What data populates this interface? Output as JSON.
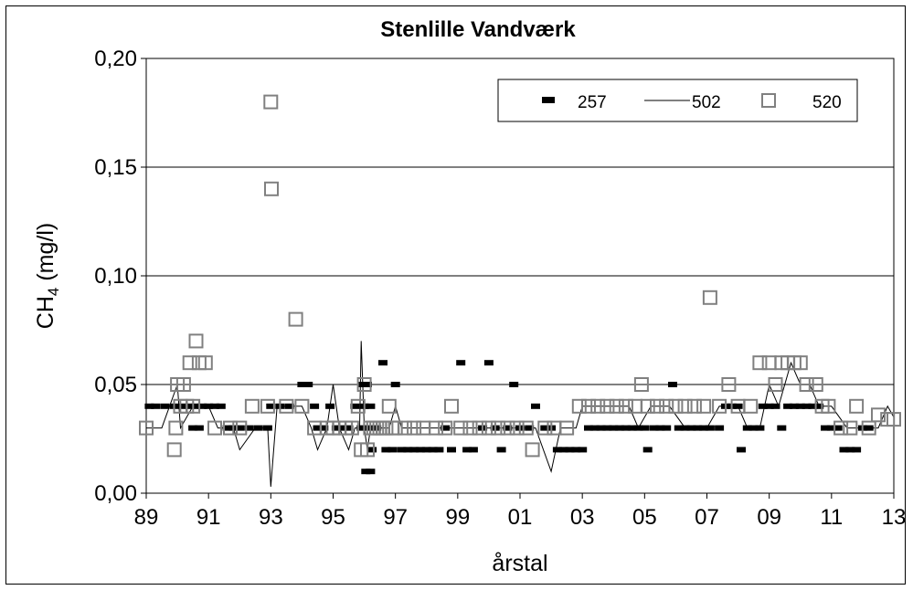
{
  "chart_data": {
    "type": "scatter",
    "title": "Stenlille Vandværk",
    "xlabel": "årstal",
    "ylabel_main": "CH",
    "ylabel_sub": "4",
    "ylabel_unit": " (mg/l)",
    "xlim": [
      89,
      113
    ],
    "ylim": [
      0,
      0.2
    ],
    "x_ticks": [
      89,
      91,
      93,
      95,
      97,
      99,
      101,
      103,
      105,
      107,
      109,
      111,
      113
    ],
    "x_tick_labels": [
      "89",
      "91",
      "93",
      "95",
      "97",
      "99",
      "01",
      "03",
      "05",
      "07",
      "09",
      "11",
      "13"
    ],
    "y_ticks": [
      0,
      0.05,
      0.1,
      0.15,
      0.2
    ],
    "y_tick_labels": [
      "0,00",
      "0,05",
      "0,10",
      "0,15",
      "0,20"
    ],
    "grid": "horizontal",
    "legend_position": "top-right",
    "series": [
      {
        "name": "257",
        "style": "dash-marker",
        "color": "#000000",
        "points": [
          [
            89.1,
            0.04
          ],
          [
            89.3,
            0.04
          ],
          [
            89.6,
            0.04
          ],
          [
            89.9,
            0.04
          ],
          [
            90.2,
            0.04
          ],
          [
            90.4,
            0.04
          ],
          [
            90.6,
            0.04
          ],
          [
            90.8,
            0.04
          ],
          [
            91.0,
            0.04
          ],
          [
            91.2,
            0.04
          ],
          [
            91.4,
            0.04
          ],
          [
            90.5,
            0.03
          ],
          [
            90.7,
            0.03
          ],
          [
            91.6,
            0.03
          ],
          [
            91.8,
            0.03
          ],
          [
            92.0,
            0.03
          ],
          [
            92.3,
            0.03
          ],
          [
            92.6,
            0.03
          ],
          [
            92.9,
            0.03
          ],
          [
            93.0,
            0.04
          ],
          [
            93.3,
            0.04
          ],
          [
            93.6,
            0.04
          ],
          [
            94.0,
            0.05
          ],
          [
            94.2,
            0.05
          ],
          [
            94.4,
            0.04
          ],
          [
            94.5,
            0.03
          ],
          [
            94.7,
            0.03
          ],
          [
            94.9,
            0.04
          ],
          [
            95.1,
            0.03
          ],
          [
            95.3,
            0.03
          ],
          [
            95.5,
            0.03
          ],
          [
            95.7,
            0.04
          ],
          [
            95.9,
            0.03
          ],
          [
            95.95,
            0.05
          ],
          [
            96.0,
            0.04
          ],
          [
            96.1,
            0.05
          ],
          [
            96.2,
            0.04
          ],
          [
            96.15,
            0.03
          ],
          [
            96.25,
            0.02
          ],
          [
            96.05,
            0.01
          ],
          [
            96.2,
            0.01
          ],
          [
            96.4,
            0.03
          ],
          [
            96.6,
            0.06
          ],
          [
            96.7,
            0.02
          ],
          [
            96.9,
            0.02
          ],
          [
            97.0,
            0.05
          ],
          [
            97.2,
            0.02
          ],
          [
            97.4,
            0.02
          ],
          [
            97.6,
            0.02
          ],
          [
            97.8,
            0.02
          ],
          [
            98.0,
            0.02
          ],
          [
            98.2,
            0.02
          ],
          [
            98.4,
            0.02
          ],
          [
            98.6,
            0.03
          ],
          [
            98.8,
            0.02
          ],
          [
            99.1,
            0.06
          ],
          [
            99.3,
            0.02
          ],
          [
            99.5,
            0.02
          ],
          [
            99.8,
            0.03
          ],
          [
            100.0,
            0.06
          ],
          [
            100.2,
            0.03
          ],
          [
            100.4,
            0.02
          ],
          [
            100.6,
            0.03
          ],
          [
            100.8,
            0.05
          ],
          [
            101.0,
            0.03
          ],
          [
            101.3,
            0.03
          ],
          [
            101.5,
            0.04
          ],
          [
            101.8,
            0.03
          ],
          [
            102.0,
            0.03
          ],
          [
            102.2,
            0.02
          ],
          [
            102.4,
            0.02
          ],
          [
            102.6,
            0.02
          ],
          [
            102.8,
            0.02
          ],
          [
            103.0,
            0.02
          ],
          [
            103.2,
            0.03
          ],
          [
            103.4,
            0.03
          ],
          [
            103.6,
            0.03
          ],
          [
            103.8,
            0.03
          ],
          [
            104.0,
            0.03
          ],
          [
            104.2,
            0.03
          ],
          [
            104.4,
            0.03
          ],
          [
            104.6,
            0.03
          ],
          [
            104.8,
            0.03
          ],
          [
            105.0,
            0.03
          ],
          [
            105.1,
            0.02
          ],
          [
            105.3,
            0.03
          ],
          [
            105.5,
            0.03
          ],
          [
            105.7,
            0.03
          ],
          [
            105.9,
            0.05
          ],
          [
            106.1,
            0.03
          ],
          [
            106.3,
            0.03
          ],
          [
            106.5,
            0.03
          ],
          [
            106.7,
            0.03
          ],
          [
            106.9,
            0.03
          ],
          [
            107.1,
            0.03
          ],
          [
            107.4,
            0.03
          ],
          [
            107.6,
            0.04
          ],
          [
            107.8,
            0.04
          ],
          [
            108.0,
            0.04
          ],
          [
            108.1,
            0.02
          ],
          [
            108.3,
            0.03
          ],
          [
            108.5,
            0.03
          ],
          [
            108.7,
            0.03
          ],
          [
            108.8,
            0.04
          ],
          [
            109.0,
            0.04
          ],
          [
            109.2,
            0.04
          ],
          [
            109.4,
            0.03
          ],
          [
            109.6,
            0.04
          ],
          [
            109.8,
            0.04
          ],
          [
            110.0,
            0.04
          ],
          [
            110.2,
            0.04
          ],
          [
            110.4,
            0.04
          ],
          [
            110.6,
            0.04
          ],
          [
            110.8,
            0.03
          ],
          [
            111.0,
            0.03
          ],
          [
            111.2,
            0.03
          ],
          [
            111.4,
            0.02
          ],
          [
            111.6,
            0.02
          ],
          [
            111.8,
            0.02
          ],
          [
            112.0,
            0.03
          ],
          [
            112.2,
            0.03
          ]
        ]
      },
      {
        "name": "502",
        "style": "line",
        "color": "#000000",
        "points": [
          [
            89.0,
            0.03
          ],
          [
            89.5,
            0.03
          ],
          [
            90.0,
            0.05
          ],
          [
            90.1,
            0.03
          ],
          [
            90.5,
            0.04
          ],
          [
            91.0,
            0.04
          ],
          [
            91.3,
            0.03
          ],
          [
            91.8,
            0.03
          ],
          [
            92.0,
            0.02
          ],
          [
            92.5,
            0.03
          ],
          [
            92.9,
            0.03
          ],
          [
            93.0,
            0.003
          ],
          [
            93.2,
            0.04
          ],
          [
            93.7,
            0.04
          ],
          [
            94.0,
            0.04
          ],
          [
            94.3,
            0.03
          ],
          [
            94.5,
            0.02
          ],
          [
            94.8,
            0.03
          ],
          [
            95.0,
            0.05
          ],
          [
            95.2,
            0.03
          ],
          [
            95.5,
            0.02
          ],
          [
            95.7,
            0.03
          ],
          [
            95.85,
            0.03
          ],
          [
            95.9,
            0.07
          ],
          [
            96.0,
            0.03
          ],
          [
            96.1,
            0.02
          ],
          [
            96.2,
            0.03
          ],
          [
            96.5,
            0.03
          ],
          [
            96.8,
            0.03
          ],
          [
            97.0,
            0.04
          ],
          [
            97.2,
            0.03
          ],
          [
            98.0,
            0.03
          ],
          [
            99.0,
            0.03
          ],
          [
            100.0,
            0.03
          ],
          [
            101.0,
            0.03
          ],
          [
            101.5,
            0.03
          ],
          [
            102.0,
            0.01
          ],
          [
            102.3,
            0.03
          ],
          [
            102.8,
            0.03
          ],
          [
            103.0,
            0.04
          ],
          [
            104.0,
            0.04
          ],
          [
            104.5,
            0.04
          ],
          [
            104.8,
            0.03
          ],
          [
            105.2,
            0.04
          ],
          [
            105.8,
            0.04
          ],
          [
            106.3,
            0.03
          ],
          [
            107.0,
            0.03
          ],
          [
            107.4,
            0.04
          ],
          [
            108.0,
            0.04
          ],
          [
            108.3,
            0.03
          ],
          [
            108.7,
            0.03
          ],
          [
            109.0,
            0.05
          ],
          [
            109.3,
            0.04
          ],
          [
            109.7,
            0.06
          ],
          [
            110.0,
            0.05
          ],
          [
            110.3,
            0.05
          ],
          [
            110.6,
            0.04
          ],
          [
            111.0,
            0.04
          ],
          [
            111.5,
            0.03
          ],
          [
            112.0,
            0.03
          ],
          [
            112.5,
            0.03
          ],
          [
            112.8,
            0.04
          ],
          [
            113.0,
            0.035
          ]
        ]
      },
      {
        "name": "520",
        "style": "open-square",
        "color": "#808080",
        "points": [
          [
            89.0,
            0.03
          ],
          [
            89.9,
            0.02
          ],
          [
            89.95,
            0.03
          ],
          [
            90.0,
            0.05
          ],
          [
            90.1,
            0.04
          ],
          [
            90.2,
            0.05
          ],
          [
            90.3,
            0.04
          ],
          [
            90.4,
            0.06
          ],
          [
            90.5,
            0.04
          ],
          [
            90.6,
            0.07
          ],
          [
            90.7,
            0.06
          ],
          [
            90.9,
            0.06
          ],
          [
            91.2,
            0.03
          ],
          [
            91.7,
            0.03
          ],
          [
            92.0,
            0.03
          ],
          [
            92.4,
            0.04
          ],
          [
            92.9,
            0.04
          ],
          [
            93.0,
            0.18
          ],
          [
            93.02,
            0.14
          ],
          [
            93.5,
            0.04
          ],
          [
            93.8,
            0.08
          ],
          [
            94.0,
            0.04
          ],
          [
            94.4,
            0.03
          ],
          [
            94.8,
            0.03
          ],
          [
            95.0,
            0.03
          ],
          [
            95.2,
            0.03
          ],
          [
            95.4,
            0.03
          ],
          [
            95.6,
            0.03
          ],
          [
            95.8,
            0.04
          ],
          [
            95.9,
            0.02
          ],
          [
            96.0,
            0.05
          ],
          [
            96.1,
            0.02
          ],
          [
            96.2,
            0.03
          ],
          [
            96.3,
            0.03
          ],
          [
            96.4,
            0.03
          ],
          [
            96.5,
            0.03
          ],
          [
            96.6,
            0.03
          ],
          [
            96.7,
            0.03
          ],
          [
            96.8,
            0.04
          ],
          [
            96.9,
            0.03
          ],
          [
            97.0,
            0.03
          ],
          [
            97.3,
            0.03
          ],
          [
            97.6,
            0.03
          ],
          [
            97.9,
            0.03
          ],
          [
            98.3,
            0.03
          ],
          [
            98.6,
            0.03
          ],
          [
            98.8,
            0.04
          ],
          [
            99.1,
            0.03
          ],
          [
            99.4,
            0.03
          ],
          [
            99.7,
            0.03
          ],
          [
            100.0,
            0.03
          ],
          [
            100.3,
            0.03
          ],
          [
            100.6,
            0.03
          ],
          [
            100.9,
            0.03
          ],
          [
            101.2,
            0.03
          ],
          [
            101.4,
            0.02
          ],
          [
            101.8,
            0.03
          ],
          [
            102.1,
            0.03
          ],
          [
            102.5,
            0.03
          ],
          [
            102.9,
            0.04
          ],
          [
            103.2,
            0.04
          ],
          [
            103.5,
            0.04
          ],
          [
            103.8,
            0.04
          ],
          [
            104.1,
            0.04
          ],
          [
            104.4,
            0.04
          ],
          [
            104.7,
            0.04
          ],
          [
            104.9,
            0.05
          ],
          [
            105.1,
            0.04
          ],
          [
            105.4,
            0.04
          ],
          [
            105.7,
            0.04
          ],
          [
            106.0,
            0.04
          ],
          [
            106.3,
            0.04
          ],
          [
            106.6,
            0.04
          ],
          [
            106.9,
            0.04
          ],
          [
            107.1,
            0.09
          ],
          [
            107.4,
            0.04
          ],
          [
            107.7,
            0.05
          ],
          [
            108.0,
            0.04
          ],
          [
            108.4,
            0.04
          ],
          [
            108.7,
            0.06
          ],
          [
            109.0,
            0.06
          ],
          [
            109.2,
            0.05
          ],
          [
            109.4,
            0.06
          ],
          [
            109.6,
            0.06
          ],
          [
            109.8,
            0.06
          ],
          [
            110.0,
            0.06
          ],
          [
            110.2,
            0.05
          ],
          [
            110.5,
            0.05
          ],
          [
            110.7,
            0.04
          ],
          [
            110.9,
            0.04
          ],
          [
            111.3,
            0.03
          ],
          [
            111.6,
            0.03
          ],
          [
            111.8,
            0.04
          ],
          [
            112.2,
            0.03
          ],
          [
            112.5,
            0.036
          ],
          [
            112.8,
            0.034
          ],
          [
            113.0,
            0.034
          ]
        ]
      }
    ]
  }
}
